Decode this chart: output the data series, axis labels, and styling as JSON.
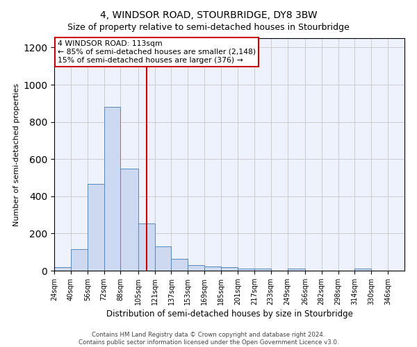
{
  "title": "4, WINDSOR ROAD, STOURBRIDGE, DY8 3BW",
  "subtitle": "Size of property relative to semi-detached houses in Stourbridge",
  "xlabel": "Distribution of semi-detached houses by size in Stourbridge",
  "ylabel": "Number of semi-detached properties",
  "bin_labels": [
    "24sqm",
    "40sqm",
    "56sqm",
    "72sqm",
    "88sqm",
    "105sqm",
    "121sqm",
    "137sqm",
    "153sqm",
    "169sqm",
    "185sqm",
    "201sqm",
    "217sqm",
    "233sqm",
    "249sqm",
    "266sqm",
    "282sqm",
    "298sqm",
    "314sqm",
    "330sqm",
    "346sqm"
  ],
  "bin_edges": [
    24,
    40,
    56,
    72,
    88,
    105,
    121,
    137,
    153,
    169,
    185,
    201,
    217,
    233,
    249,
    266,
    282,
    298,
    314,
    330,
    346
  ],
  "bar_heights": [
    20,
    115,
    465,
    880,
    550,
    255,
    130,
    65,
    30,
    22,
    18,
    10,
    10,
    0,
    10,
    0,
    0,
    0,
    10,
    0,
    0
  ],
  "bar_color": "#ccd9f0",
  "bar_edge_color": "#5588bb",
  "property_line_x": 113,
  "vline_color": "#cc0000",
  "annotation_line1": "4 WINDSOR ROAD: 113sqm",
  "annotation_line2": "← 85% of semi-detached houses are smaller (2,148)",
  "annotation_line3": "15% of semi-detached houses are larger (376) →",
  "annotation_box_facecolor": "#ffffff",
  "annotation_box_edgecolor": "#cc0000",
  "ylim": [
    0,
    1250
  ],
  "yticks": [
    0,
    200,
    400,
    600,
    800,
    1000,
    1200
  ],
  "grid_color": "#cccccc",
  "bg_color": "#eef2fc",
  "footer_line1": "Contains HM Land Registry data © Crown copyright and database right 2024.",
  "footer_line2": "Contains public sector information licensed under the Open Government Licence v3.0."
}
